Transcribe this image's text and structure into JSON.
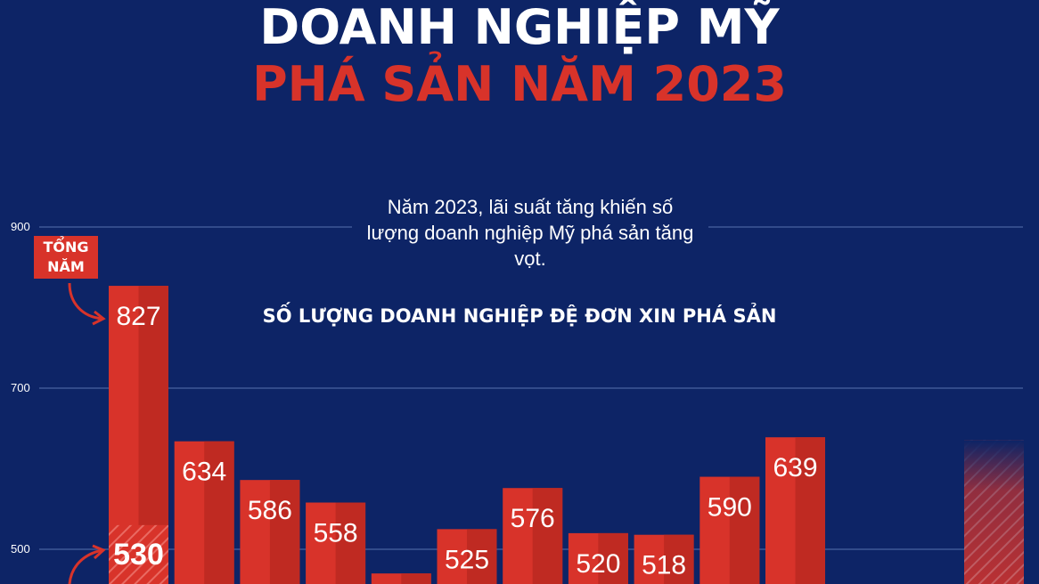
{
  "header": {
    "title_line1": "DOANH NGHIỆP MỸ",
    "title_line2": "PHÁ SẢN NĂM 2023",
    "subtitle": "Năm 2023, lãi suất tăng khiến số lượng doanh nghiệp Mỹ phá sản tăng vọt."
  },
  "badge": {
    "line1": "TỔNG",
    "line2": "NĂM"
  },
  "colors": {
    "background": "#0d2466",
    "bar": "#d8332a",
    "bar_shade": "#bf2a22",
    "grid": "#3f5896",
    "text": "#ffffff",
    "accent": "#d8332a"
  },
  "chart_data": {
    "type": "bar",
    "title": "SỐ LƯỢNG DOANH NGHIỆP ĐỆ ĐƠN XIN PHÁ SẢN",
    "yticks": [
      500,
      700,
      900
    ],
    "ylim": [
      455,
      900
    ],
    "values": [
      827,
      634,
      586,
      558,
      470,
      525,
      576,
      520,
      518,
      590,
      639
    ],
    "value_labels": [
      "827",
      "634",
      "586",
      "558",
      "",
      "525",
      "576",
      "520",
      "518",
      "590",
      "639"
    ],
    "stacked_first_bar_value": 530,
    "stacked_first_bar_label": "530",
    "partial_bar_value": 635
  }
}
